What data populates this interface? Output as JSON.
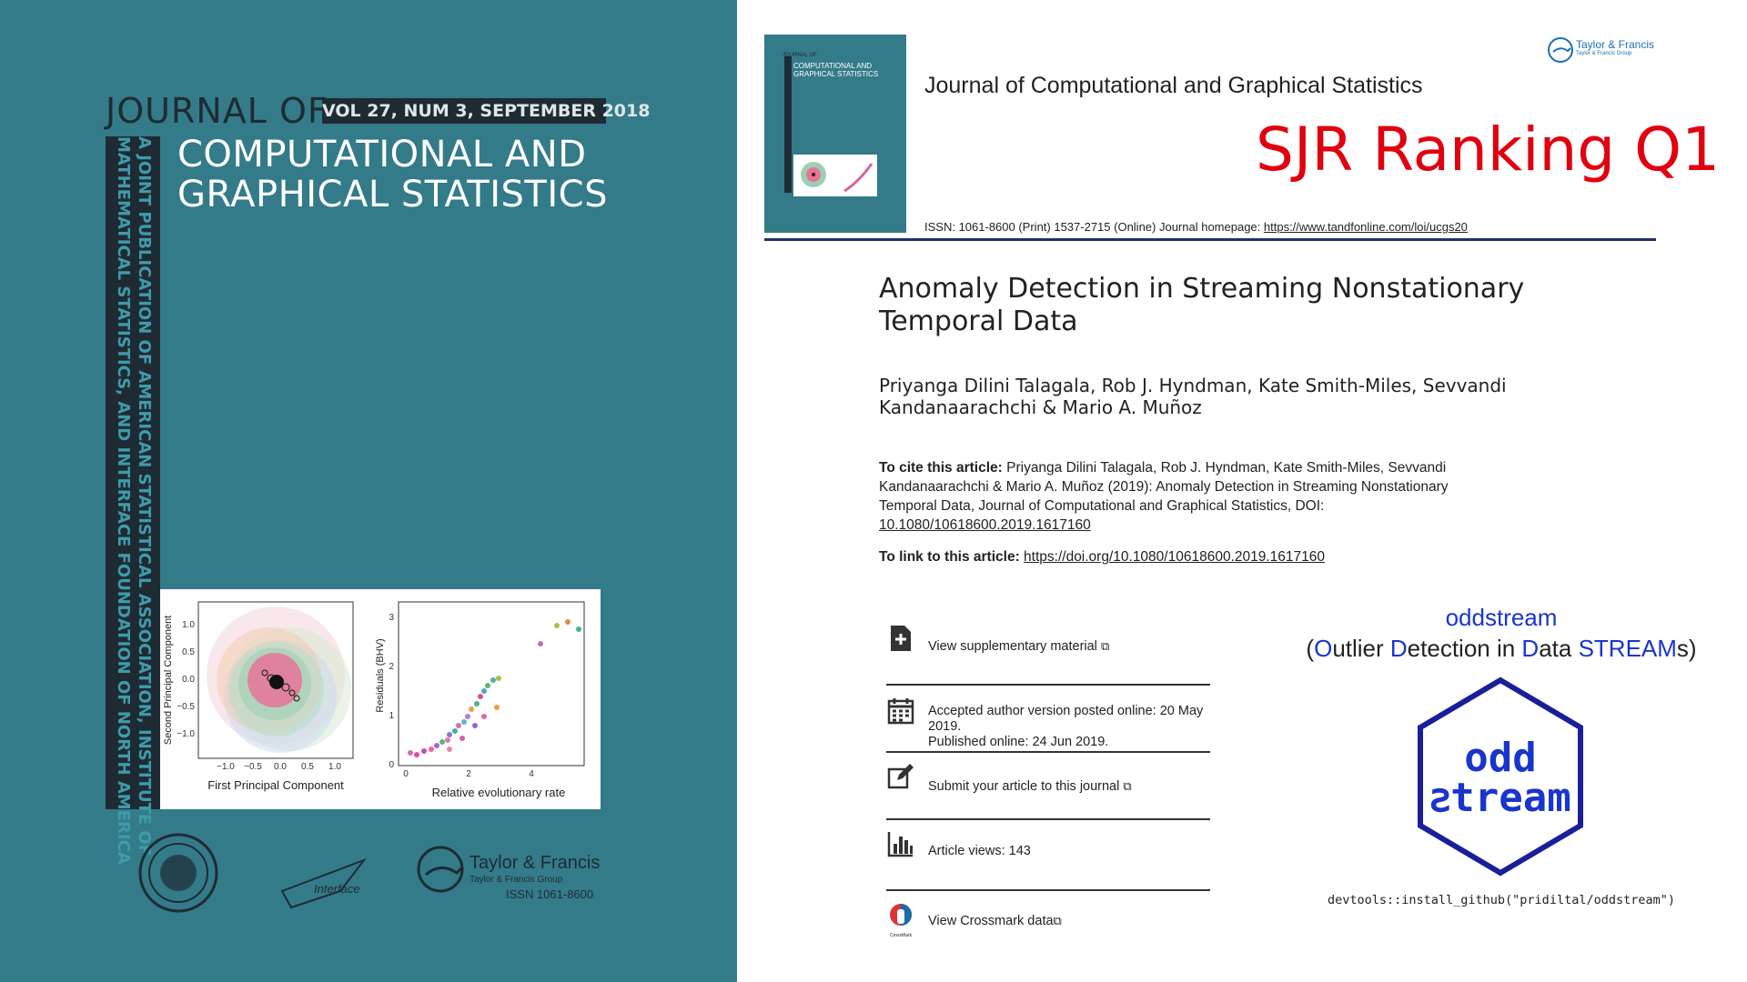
{
  "cover": {
    "journal_of": "JOURNAL OF",
    "volume": "VOL 27, NUM 3, SEPTEMBER 2018",
    "title_line1": "COMPUTATIONAL AND",
    "title_line2": "GRAPHICAL STATISTICS",
    "vertical_line1": "A JOINT PUBLICATION OF AMERICAN STATISTICAL ASSOCIATION, INSTITUTE OF",
    "vertical_line2": "MATHEMATICAL STATISTICS, AND INTERFACE FOUNDATION OF NORTH AMERICA",
    "figure": {
      "left_xlabel": "First Principal Component",
      "left_ylabel": "Second Principal Component",
      "left_xticks": [
        "−1.0",
        "−0.5",
        "0.0",
        "0.5",
        "1.0"
      ],
      "left_yticks": [
        "1.0",
        "0.5",
        "0.0",
        "−0.5",
        "−1.0"
      ],
      "right_xlabel": "Relative evolutionary rate",
      "right_ylabel": "Residuals (BHV)",
      "right_xticks": [
        "0",
        "2",
        "4"
      ],
      "right_yticks": [
        "3",
        "2",
        "1",
        "0"
      ]
    },
    "interface_logo": "Interface",
    "publisher": "Taylor & Francis",
    "publisher_sub": "Taylor & Francis Group",
    "issn": "ISSN 1061-8600"
  },
  "header": {
    "mini_cover_top": "JOURNAL OF",
    "mini_cover_title1": "COMPUTATIONAL AND",
    "mini_cover_title2": "GRAPHICAL STATISTICS",
    "publisher": "Taylor & Francis",
    "publisher_sub": "Taylor & Francis Group",
    "journal_title": "Journal of Computational and Graphical Statistics",
    "sjr": "SJR Ranking Q1",
    "issn_text": "ISSN: 1061-8600 (Print) 1537-2715 (Online) Journal homepage: ",
    "homepage_url": "https://www.tandfonline.com/loi/ucgs20"
  },
  "article": {
    "title": "Anomaly Detection in Streaming Nonstationary Temporal Data",
    "authors": "Priyanga Dilini Talagala, Rob J. Hyndman, Kate Smith-Miles, Sevvandi Kandanaarachchi & Mario A. Muñoz",
    "cite_label": "To cite this article:",
    "cite_text": " Priyanga Dilini Talagala, Rob J. Hyndman, Kate Smith-Miles, Sevvandi Kandanaarachchi & Mario A. Muñoz (2019): Anomaly Detection in Streaming Nonstationary Temporal Data, Journal of Computational and Graphical Statistics, DOI: ",
    "cite_doi": "10.1080/10618600.2019.1617160",
    "link_label": "To link to this article: ",
    "link_url": "https://doi.org/10.1080/10618600.2019.1617160"
  },
  "links": {
    "supplementary": "View supplementary material",
    "accepted": "Accepted author version posted online: 20 May 2019.",
    "published": "Published online: 24 Jun 2019.",
    "submit": "Submit your article to this journal",
    "views": "Article views: 143",
    "crossmark": "View Crossmark data",
    "crossmark_logo": "CrossMark"
  },
  "oddstream": {
    "name": "oddstream",
    "sub_open": "(",
    "sub_O": "O",
    "sub_1": "utlier ",
    "sub_D": "D",
    "sub_2": "etection in ",
    "sub_Da": "D",
    "sub_3": "ata ",
    "sub_STREAM": "STREAM",
    "sub_close": "s)",
    "hex_line1": "odd",
    "hex_line2": "ꙅtream",
    "install": "devtools::install_github(\"pridiltal/oddstream\")",
    "colors": {
      "blue": "#1a35cc",
      "hex_border": "#1a1f99"
    }
  },
  "colors": {
    "cover_teal": "#347b89",
    "sjr_red": "#e1000f",
    "rule_navy": "#1f3170"
  }
}
